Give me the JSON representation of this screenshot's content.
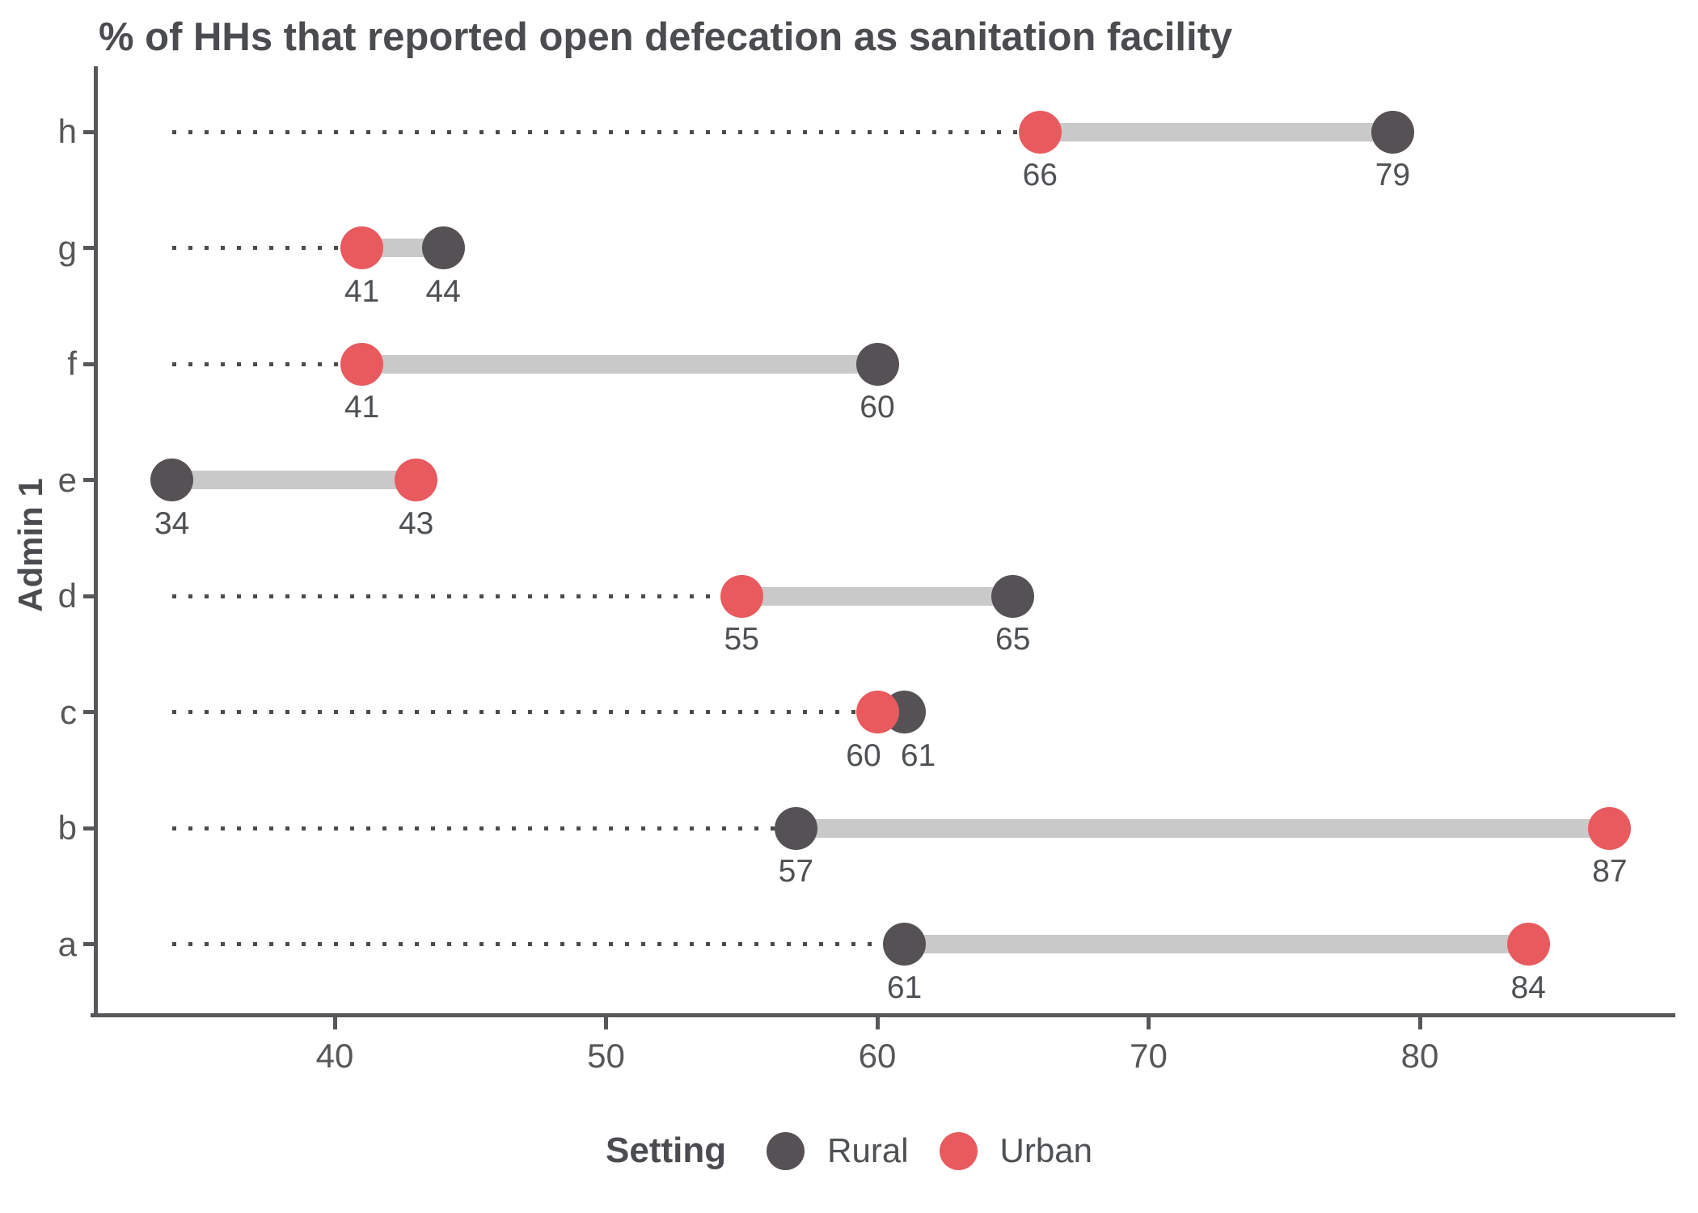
{
  "title": "% of HHs that reported open defecation as sanitation facility",
  "y_axis_title": "Admin 1",
  "legend": {
    "title": "Setting",
    "items": [
      {
        "label": "Rural",
        "color": "#565154"
      },
      {
        "label": "Urban",
        "color": "#e85a5e"
      }
    ]
  },
  "colors": {
    "rural": "#565154",
    "urban": "#e85a5e",
    "connector": "#c9c9c9",
    "dotted_line": "#4b4b4b",
    "axis": "#55575a",
    "text_dark": "#4a4c50",
    "text_tick": "#55575a",
    "value_label": "#4e5154"
  },
  "chart_data": {
    "type": "dumbbell",
    "orientation": "horizontal",
    "title": "% of HHs that reported open defecation as sanitation facility",
    "xlabel": "",
    "ylabel": "Admin 1",
    "categories": [
      "h",
      "g",
      "f",
      "e",
      "d",
      "c",
      "b",
      "a"
    ],
    "series": [
      {
        "name": "Rural",
        "color": "#565154",
        "values": [
          79,
          44,
          60,
          34,
          65,
          61,
          57,
          61
        ]
      },
      {
        "name": "Urban",
        "color": "#e85a5e",
        "values": [
          66,
          41,
          41,
          43,
          55,
          60,
          87,
          84
        ]
      }
    ],
    "x_ticks": [
      40,
      50,
      60,
      70,
      80
    ],
    "xlim": [
      31.2,
      89.5
    ],
    "baseline_value": 34,
    "grid": "off",
    "legend_position": "bottom",
    "data_labels": "on"
  }
}
